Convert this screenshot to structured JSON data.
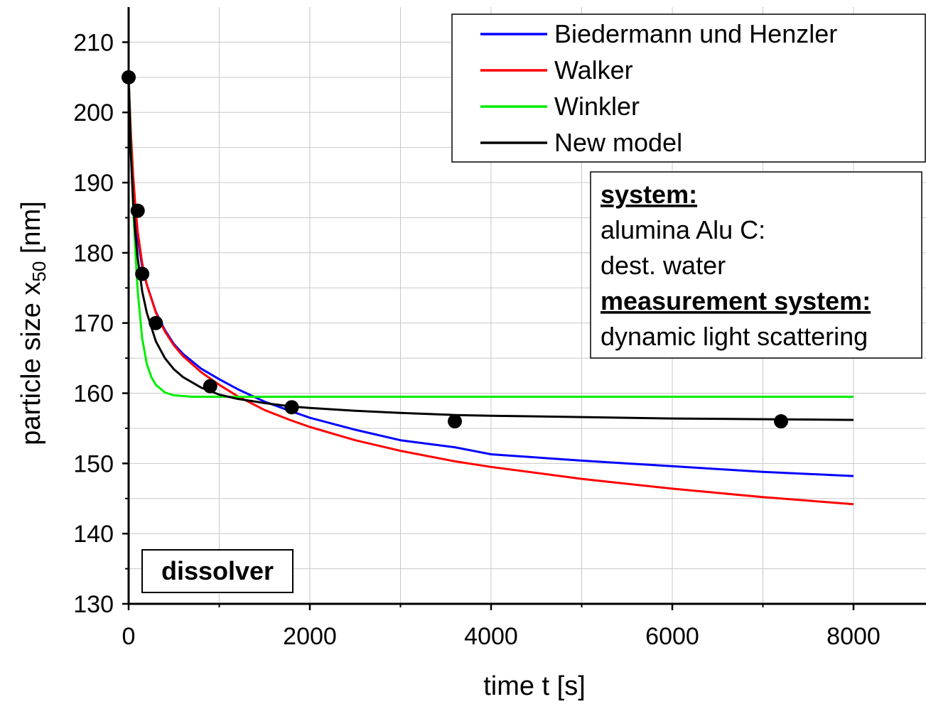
{
  "chart_data": {
    "type": "line",
    "xlabel": "time t [s]",
    "ylabel_main": "particle size x",
    "ylabel_sub": "50",
    "ylabel_unit": " [nm]",
    "xlim": [
      0,
      8800
    ],
    "ylim": [
      130,
      215
    ],
    "xticks": [
      0,
      2000,
      4000,
      6000,
      8000
    ],
    "xtick_labels": [
      "0",
      "2000",
      "4000",
      "6000",
      "8000"
    ],
    "yticks": [
      130,
      140,
      150,
      160,
      170,
      180,
      190,
      200,
      210
    ],
    "ytick_labels": [
      "130",
      "140",
      "150",
      "160",
      "170",
      "180",
      "190",
      "200",
      "210"
    ],
    "grid": true,
    "legend_position": "top-right",
    "series": [
      {
        "name": "Biedermann und Henzler",
        "color": "#0000ff",
        "x": [
          0,
          25,
          50,
          75,
          100,
          150,
          200,
          300,
          400,
          500,
          600,
          800,
          1000,
          1200,
          1500,
          1800,
          2000,
          2500,
          3000,
          3600,
          4000,
          5000,
          6000,
          7000,
          8000
        ],
        "y": [
          205,
          194.5,
          189,
          185,
          182,
          178,
          175.5,
          171.6,
          169,
          167,
          165.6,
          163.5,
          162,
          160.6,
          158.8,
          157.4,
          156.5,
          154.8,
          153.3,
          152.3,
          151.3,
          150.4,
          149.6,
          148.8,
          148.2
        ]
      },
      {
        "name": "Walker",
        "color": "#ff0000",
        "x": [
          0,
          25,
          50,
          75,
          100,
          150,
          200,
          300,
          400,
          500,
          600,
          800,
          1000,
          1200,
          1500,
          1800,
          2000,
          2500,
          3000,
          3600,
          4000,
          5000,
          6000,
          7000,
          8000
        ],
        "y": [
          205,
          197,
          191,
          186.5,
          183,
          178.5,
          175.5,
          171.5,
          168.8,
          166.8,
          165.3,
          163,
          161.2,
          159.6,
          157.6,
          156.1,
          155.2,
          153.3,
          151.8,
          150.3,
          149.5,
          147.8,
          146.4,
          145.2,
          144.2
        ]
      },
      {
        "name": "Winkler",
        "color": "#00ee00",
        "x": [
          0,
          25,
          50,
          75,
          100,
          150,
          200,
          250,
          300,
          400,
          500,
          600,
          700,
          900,
          1200,
          2000,
          4000,
          8000
        ],
        "y": [
          205,
          195,
          186.5,
          180,
          174.5,
          167.8,
          164.2,
          162.3,
          161.2,
          160.1,
          159.7,
          159.6,
          159.5,
          159.5,
          159.5,
          159.5,
          159.5,
          159.5
        ]
      },
      {
        "name": "New model",
        "color": "#000000",
        "x": [
          0,
          25,
          50,
          75,
          100,
          150,
          200,
          300,
          400,
          500,
          600,
          800,
          1000,
          1200,
          1500,
          1800,
          2000,
          2500,
          3000,
          3600,
          4000,
          5000,
          6000,
          7000,
          8000
        ],
        "y": [
          205,
          194,
          187,
          182.5,
          179.2,
          174.5,
          171.5,
          167.4,
          165,
          163.4,
          162.3,
          160.8,
          159.8,
          159.2,
          158.6,
          158.1,
          157.9,
          157.5,
          157.2,
          156.9,
          156.8,
          156.6,
          156.4,
          156.3,
          156.2
        ]
      }
    ],
    "measurements": {
      "x": [
        0,
        100,
        150,
        300,
        900,
        1800,
        3600,
        7200
      ],
      "y": [
        205,
        186,
        177,
        170,
        161,
        158,
        156,
        156
      ]
    },
    "annotations": {
      "system_box": [
        {
          "text": "system:",
          "bold": true
        },
        {
          "text": "alumina Alu C:",
          "bold": false
        },
        {
          "text": "dest. water",
          "bold": false
        },
        {
          "text": "measurement system:",
          "bold": true
        },
        {
          "text": "dynamic light scattering",
          "bold": false
        }
      ],
      "label_box": "dissolver"
    }
  }
}
